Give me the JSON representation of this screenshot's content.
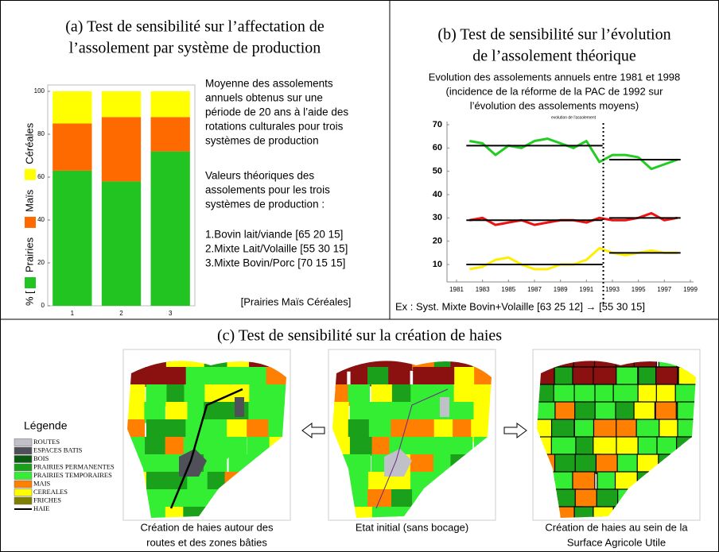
{
  "panel_a": {
    "title": [
      "(a) Test de sensibilité sur l’affectation de",
      "l’assolement par système de production"
    ],
    "y_label_prefix": "% [",
    "description": [
      "Moyenne des assolements",
      "annuels obtenus sur une",
      "période de 20 ans à l’aide des",
      "rotations culturales pour trois",
      "systèmes de production"
    ],
    "theory": [
      "Valeurs théoriques des",
      "assolements pour les trois",
      "systèmes de production :"
    ],
    "systems": [
      "1.Bovin lait/viande [65 20 15]",
      "2.Mixte Lait/Volaille [55 30 15]",
      "3.Mixte Bovin/Porc [70 15 15]"
    ],
    "order_note": "[Prairies  Maïs  Céréales]"
  },
  "panel_b": {
    "title": [
      "(b) Test de sensibilité sur l’évolution",
      "de l’assolement théorique"
    ],
    "subtitle": [
      "Evolution des assolements annuels entre 1981 et 1998",
      "(incidence de la réforme de la PAC de 1992 sur",
      "l’évolution des assolements moyens)"
    ],
    "footer": "Ex : Syst. Mixte Bovin+Volaille [63 25 12] → [55 30 15]"
  },
  "chart_data": [
    {
      "type": "stacked_bar",
      "categories": [
        "1",
        "2",
        "3"
      ],
      "series": [
        {
          "name": "Prairies",
          "color": "#22c422",
          "values": [
            63,
            58,
            72
          ]
        },
        {
          "name": "Maïs",
          "color": "#ff6a00",
          "values": [
            22,
            30,
            16
          ]
        },
        {
          "name": "Céréales",
          "color": "#ffff00",
          "values": [
            15,
            12,
            12
          ]
        }
      ],
      "ylim": [
        0,
        100
      ],
      "yticks": [
        0,
        20,
        40,
        60,
        80,
        100
      ]
    },
    {
      "type": "line",
      "title": "evolution de l'assolement",
      "x": [
        1982,
        1983,
        1984,
        1985,
        1986,
        1987,
        1988,
        1989,
        1990,
        1991,
        1992,
        1993,
        1994,
        1995,
        1996,
        1997,
        1998
      ],
      "series": [
        {
          "color": "#22cc22",
          "values": [
            63,
            62,
            57,
            61,
            60,
            63,
            64,
            62,
            60,
            63,
            54,
            57,
            57,
            56,
            51,
            53,
            55
          ]
        },
        {
          "color": "#ee1111",
          "values": [
            29,
            30,
            27,
            28,
            29,
            27,
            28,
            29,
            29,
            28,
            30,
            29,
            29,
            30,
            32,
            29,
            30
          ]
        },
        {
          "color": "#ffee00",
          "values": [
            8,
            9,
            12,
            13,
            10,
            8,
            8,
            10,
            10,
            12,
            17,
            15,
            14,
            15,
            16,
            15,
            15
          ]
        }
      ],
      "reference_lines": [
        {
          "x": [
            1982,
            1992
          ],
          "value": 61
        },
        {
          "x": [
            1993,
            1998
          ],
          "value": 55
        },
        {
          "x": [
            1982,
            1992
          ],
          "value": 29
        },
        {
          "x": [
            1993,
            1998
          ],
          "value": 30
        },
        {
          "x": [
            1982,
            1992
          ],
          "value": 10
        },
        {
          "x": [
            1993,
            1998
          ],
          "value": 15
        }
      ],
      "split_x": 1992.3,
      "xlim": [
        1981,
        1999
      ],
      "xticks": [
        1981,
        1983,
        1985,
        1987,
        1989,
        1991,
        1993,
        1995,
        1997,
        1999
      ],
      "ylim": [
        2.5,
        70
      ],
      "yticks": [
        10,
        20,
        30,
        40,
        50,
        60,
        70
      ]
    }
  ],
  "panel_c": {
    "title": "(c) Test de sensibilité sur la création de haies",
    "legend_title": "Légende",
    "legend": [
      {
        "label": "ROUTES",
        "color": "#c0c0c8"
      },
      {
        "label": "ESPACES BATIS",
        "color": "#505058"
      },
      {
        "label": "BOIS",
        "color": "#0b5a12"
      },
      {
        "label": "PRAIRIES PERMANENTES",
        "color": "#1aa01a"
      },
      {
        "label": "PRAIRIES TEMPORAIRES",
        "color": "#33ee33"
      },
      {
        "label": "MAIS",
        "color": "#ff7f00"
      },
      {
        "label": "CEREALES",
        "color": "#ffff00"
      },
      {
        "label": "FRICHES",
        "color": "#808000"
      },
      {
        "label": "HAIE",
        "color": "#000000"
      }
    ],
    "captions": [
      [
        "Création de haies autour des",
        "routes et des zones bâties"
      ],
      [
        "Etat initial (sans bocage)"
      ],
      [
        "Création de haies au sein de la",
        "Surface Agricole Utile"
      ]
    ]
  }
}
